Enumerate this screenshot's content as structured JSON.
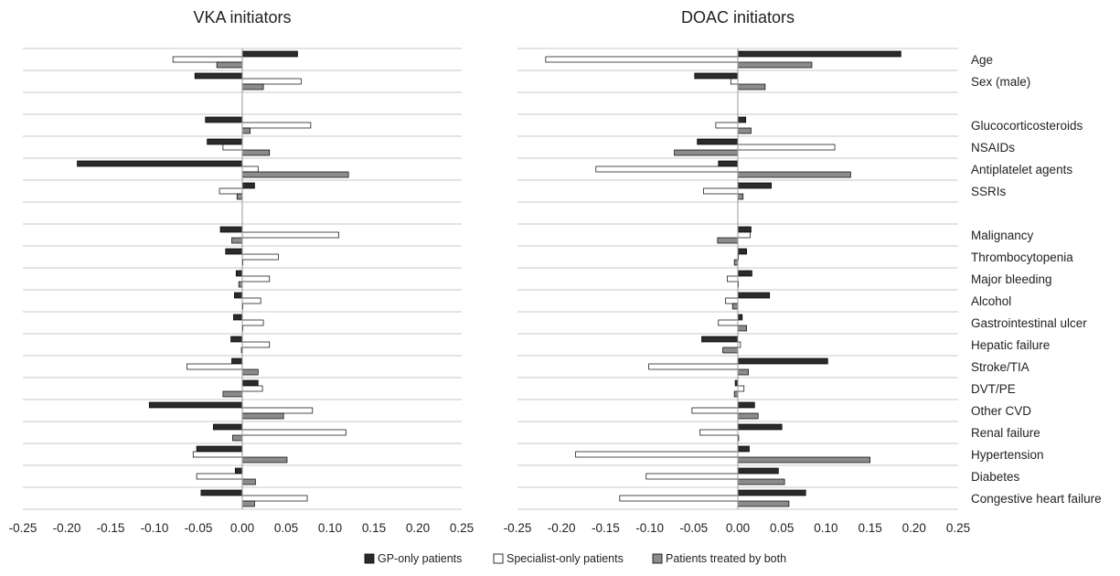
{
  "chart_data": {
    "type": "bar",
    "orientation": "horizontal",
    "categories": [
      "Age",
      "Sex (male)",
      "",
      "Glucocorticosteroids",
      "NSAIDs",
      "Antiplatelet agents",
      "SSRIs",
      "",
      "Malignancy",
      "Thrombocytopenia",
      "Major bleeding",
      "Alcohol",
      "Gastrointestinal ulcer",
      "Hepatic failure",
      "Stroke/TIA",
      "DVT/PE",
      "Other CVD",
      "Renal failure",
      "Hypertension",
      "Diabetes",
      "Congestive heart failure"
    ],
    "x_ticks": [
      "-0.25",
      "-0.20",
      "-0.15",
      "-0.10",
      "-0.05",
      "0.00",
      "0.05",
      "0.10",
      "0.15",
      "0.20",
      "0.25"
    ],
    "xlim": [
      -0.25,
      0.25
    ],
    "grid": true,
    "legend_position": "bottom",
    "legend": [
      "GP-only patients",
      "Specialist-only patients",
      "Patients treated by both"
    ],
    "series_colors": [
      "#2b2b2b",
      "#ffffff",
      "#8c8c8c"
    ],
    "panels": [
      {
        "title": "VKA initiators",
        "series": [
          {
            "name": "GP-only patients",
            "values": [
              0.063,
              -0.054,
              null,
              -0.042,
              -0.04,
              -0.188,
              0.014,
              null,
              -0.025,
              -0.019,
              -0.007,
              -0.009,
              -0.01,
              -0.013,
              -0.012,
              0.018,
              -0.106,
              -0.033,
              -0.052,
              -0.008,
              -0.047
            ]
          },
          {
            "name": "Specialist-only patients",
            "values": [
              -0.079,
              0.067,
              null,
              0.078,
              -0.022,
              0.018,
              -0.026,
              null,
              0.11,
              0.041,
              0.031,
              0.021,
              0.024,
              0.031,
              -0.063,
              0.023,
              0.08,
              0.118,
              -0.056,
              -0.052,
              0.074
            ]
          },
          {
            "name": "Patients treated by both",
            "values": [
              -0.029,
              0.024,
              null,
              0.009,
              0.031,
              0.121,
              -0.006,
              null,
              -0.012,
              0.0,
              -0.004,
              0.0,
              0.0,
              -0.001,
              0.018,
              -0.022,
              0.047,
              -0.011,
              0.051,
              0.015,
              0.014
            ]
          }
        ]
      },
      {
        "title": "DOAC initiators",
        "series": [
          {
            "name": "GP-only patients",
            "values": [
              0.185,
              -0.049,
              null,
              0.009,
              -0.046,
              -0.022,
              0.038,
              null,
              0.015,
              0.01,
              0.016,
              0.036,
              0.005,
              -0.041,
              0.102,
              -0.003,
              0.019,
              0.05,
              0.013,
              0.046,
              0.077
            ]
          },
          {
            "name": "Specialist-only patients",
            "values": [
              -0.218,
              -0.008,
              null,
              -0.025,
              0.11,
              -0.161,
              -0.039,
              null,
              0.014,
              0.0,
              -0.012,
              -0.014,
              -0.022,
              0.003,
              -0.101,
              0.007,
              -0.052,
              -0.043,
              -0.184,
              -0.104,
              -0.134
            ]
          },
          {
            "name": "Patients treated by both",
            "values": [
              0.084,
              0.031,
              null,
              0.015,
              -0.072,
              0.128,
              0.006,
              null,
              -0.023,
              -0.004,
              0.0,
              -0.006,
              0.01,
              -0.017,
              0.012,
              -0.004,
              0.023,
              0.001,
              0.15,
              0.053,
              0.058
            ]
          }
        ]
      }
    ]
  }
}
